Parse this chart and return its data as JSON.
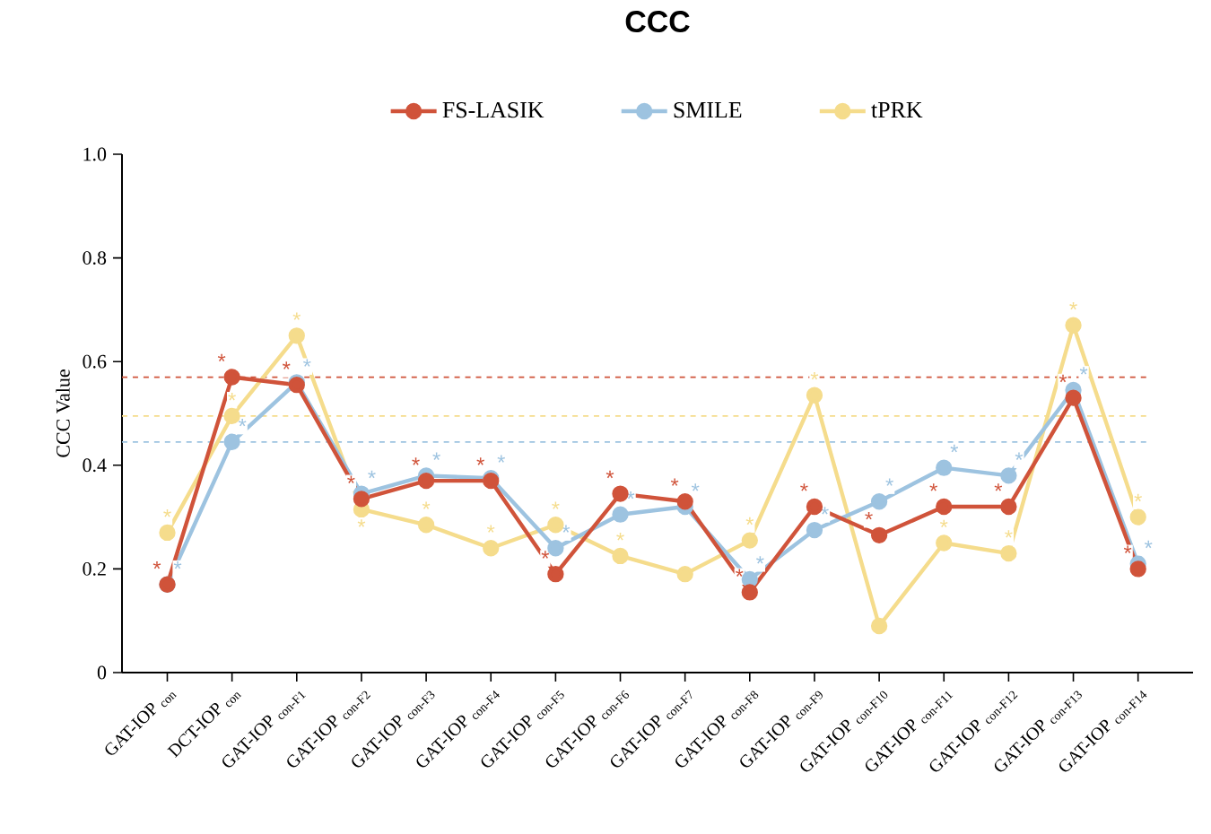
{
  "chart_data": {
    "type": "line",
    "title": "CCC",
    "ylabel": "CCC Value",
    "categories": [
      "GAT-IOP $_{con}$",
      "DCT-IOP $_{con}$",
      "GAT-IOP $_{con-F1}$",
      "GAT-IOP $_{con-F2}$",
      "GAT-IOP $_{con-F3}$",
      "GAT-IOP $_{con-F4}$",
      "GAT-IOP $_{con-F5}$",
      "GAT-IOP $_{con-F6}$",
      "GAT-IOP $_{con-F7}$",
      "GAT-IOP $_{con-F8}$",
      "GAT-IOP $_{con-F9}$",
      "GAT-IOP $_{con-F10}$",
      "GAT-IOP $_{con-F11}$",
      "GAT-IOP $_{con-F12}$",
      "GAT-IOP $_{con-F13}$",
      "GAT-IOP $_{con-F14}$"
    ],
    "series": [
      {
        "name": "FS-LASIK",
        "color": "#d0533a",
        "values": [
          0.17,
          0.57,
          0.555,
          0.335,
          0.37,
          0.37,
          0.19,
          0.345,
          0.33,
          0.155,
          0.32,
          0.265,
          0.32,
          0.32,
          0.53,
          0.2
        ],
        "value_labels": [
          "*",
          "*",
          "*",
          "*",
          "*",
          "*",
          "*",
          "*",
          "*",
          "*",
          "*",
          "*",
          "*",
          "*",
          "*",
          "*"
        ]
      },
      {
        "name": "SMILE",
        "color": "#9dc3e0",
        "values": [
          0.17,
          0.445,
          0.56,
          0.345,
          0.38,
          0.375,
          0.24,
          0.305,
          0.32,
          0.18,
          0.275,
          0.33,
          0.395,
          0.38,
          0.545,
          0.21
        ],
        "value_labels": [
          "*",
          "*",
          "*",
          "*",
          "*",
          "*",
          "*",
          "*",
          "*",
          "*",
          "*",
          "*",
          "*",
          "*",
          "*",
          "*"
        ]
      },
      {
        "name": "tPRK",
        "color": "#f5dc8c",
        "values": [
          0.27,
          0.495,
          0.65,
          0.315,
          0.285,
          0.24,
          0.285,
          0.225,
          0.19,
          0.255,
          0.535,
          0.09,
          0.25,
          0.23,
          0.67,
          0.3
        ],
        "value_labels": [
          "*",
          "*",
          "*",
          "*",
          "*",
          "*",
          "*",
          "*",
          null,
          "*",
          "*",
          null,
          "*",
          "*",
          "*",
          "*"
        ]
      }
    ],
    "ylim": [
      0,
      1
    ],
    "yticks": [
      0,
      0.2,
      0.4,
      0.6,
      0.8,
      {
        "value": 1,
        "label": "1.0"
      }
    ],
    "ref_lines": [
      {
        "axis": "y",
        "value": 0.57,
        "color": "#d0533a",
        "line_style": "dashed"
      },
      {
        "axis": "y",
        "value": 0.495,
        "color": "#f5dc8c",
        "line_style": "dashed"
      },
      {
        "axis": "y",
        "value": 0.445,
        "color": "#9dc3e0",
        "line_style": "dashed"
      }
    ],
    "legend": "top",
    "marker": "circle",
    "line_style": "solid",
    "grid": false
  }
}
